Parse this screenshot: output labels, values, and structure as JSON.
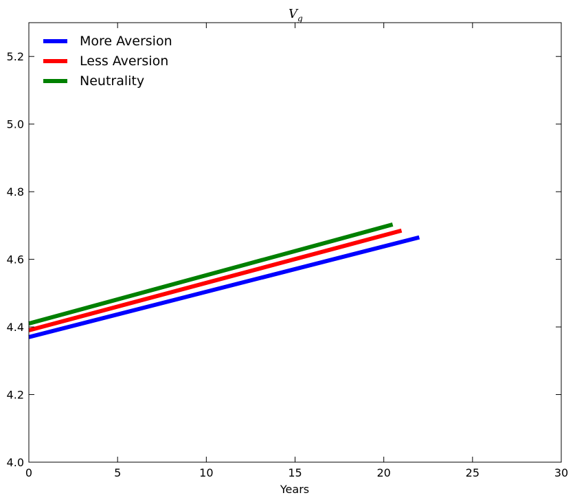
{
  "chart_data": {
    "type": "line",
    "title": "V",
    "title_subscript": "g",
    "xlabel": "Years",
    "ylabel": "",
    "xlim": [
      0,
      30
    ],
    "ylim": [
      4.0,
      5.3
    ],
    "xticks": [
      "0",
      "5",
      "10",
      "15",
      "20",
      "25",
      "30"
    ],
    "yticks": [
      "4.0",
      "4.2",
      "4.4",
      "4.6",
      "4.8",
      "5.0",
      "5.2"
    ],
    "grid": false,
    "legend_position": "top-left",
    "series": [
      {
        "name": "More Aversion",
        "color": "#0000ff",
        "x": [
          0,
          22
        ],
        "y": [
          4.37,
          4.665
        ]
      },
      {
        "name": "Less Aversion",
        "color": "#ff0000",
        "x": [
          0,
          21
        ],
        "y": [
          4.39,
          4.685
        ]
      },
      {
        "name": "Neutrality",
        "color": "#008000",
        "x": [
          0,
          20.5
        ],
        "y": [
          4.41,
          4.703
        ]
      }
    ]
  }
}
